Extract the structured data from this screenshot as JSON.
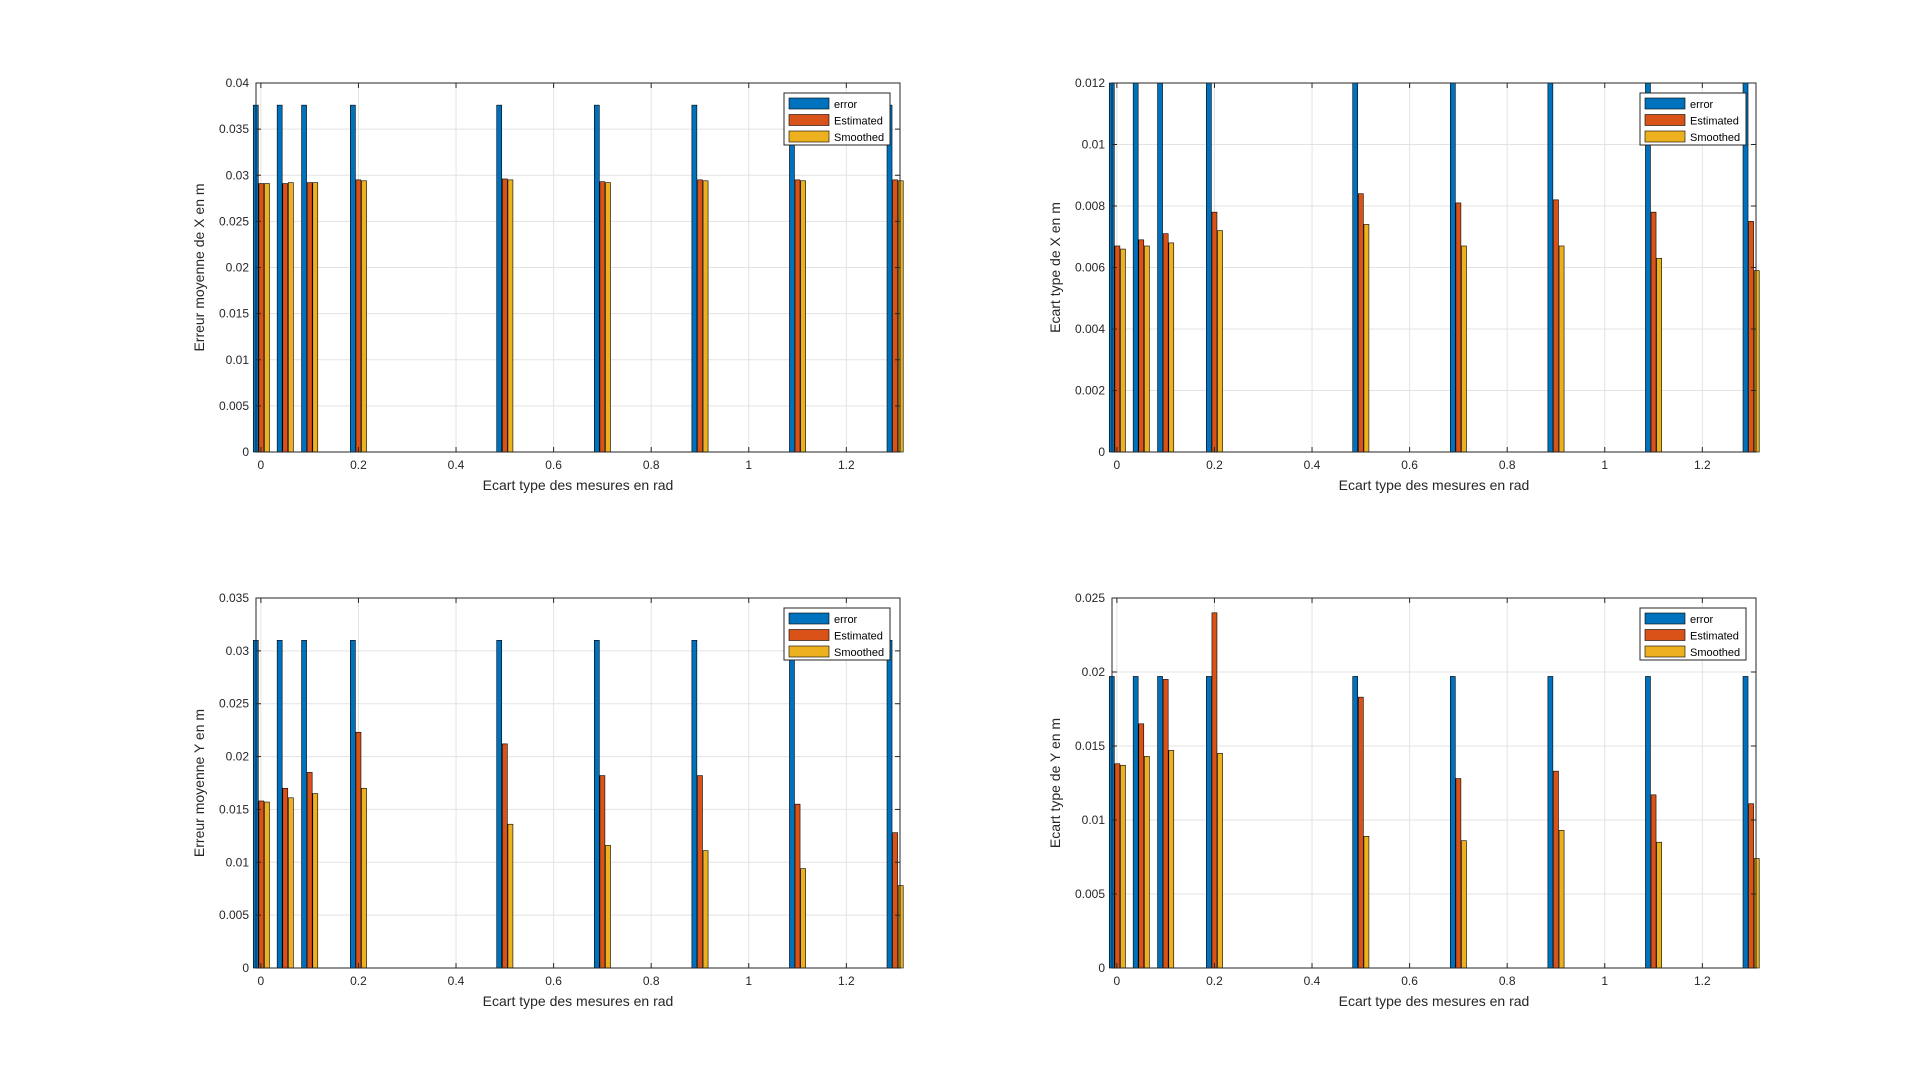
{
  "chart_data": [
    {
      "type": "bar",
      "xlabel": "Ecart type des mesures en rad",
      "ylabel": "Erreur moyenne de X en m",
      "xlim": [
        -0.01,
        1.31
      ],
      "ylim": [
        0,
        0.04
      ],
      "xticks": [
        0,
        0.2,
        0.4,
        0.6,
        0.8,
        1,
        1.2
      ],
      "xtick_labels": [
        "0",
        "0.2",
        "0.4",
        "0.6",
        "0.8",
        "1",
        "1.2"
      ],
      "yticks": [
        0,
        0.005,
        0.01,
        0.015,
        0.02,
        0.025,
        0.03,
        0.035,
        0.04
      ],
      "ytick_labels": [
        "0",
        "0.005",
        "0.01",
        "0.015",
        "0.02",
        "0.025",
        "0.03",
        "0.035",
        "0.04"
      ],
      "grid": true,
      "legend_position": "top-right",
      "x": [
        0.001,
        0.05,
        0.1,
        0.2,
        0.5,
        0.7,
        0.9,
        1.1,
        1.3
      ],
      "series": [
        {
          "name": "error",
          "color": "#0072BD",
          "values": [
            0.0376,
            0.0376,
            0.0376,
            0.0376,
            0.0376,
            0.0376,
            0.0376,
            0.0376,
            0.0376
          ]
        },
        {
          "name": "Estimated",
          "color": "#D95319",
          "values": [
            0.0291,
            0.0291,
            0.0292,
            0.0295,
            0.0296,
            0.0293,
            0.0295,
            0.0295,
            0.0295
          ]
        },
        {
          "name": "Smoothed",
          "color": "#EDB120",
          "values": [
            0.0291,
            0.0292,
            0.0292,
            0.0294,
            0.0295,
            0.0292,
            0.0294,
            0.0294,
            0.0294
          ]
        }
      ]
    },
    {
      "type": "bar",
      "xlabel": "Ecart type des mesures en rad",
      "ylabel": "Ecart type de X en m",
      "xlim": [
        -0.01,
        1.31
      ],
      "ylim": [
        0,
        0.012
      ],
      "xticks": [
        0,
        0.2,
        0.4,
        0.6,
        0.8,
        1,
        1.2
      ],
      "xtick_labels": [
        "0",
        "0.2",
        "0.4",
        "0.6",
        "0.8",
        "1",
        "1.2"
      ],
      "yticks": [
        0,
        0.002,
        0.004,
        0.006,
        0.008,
        0.01,
        0.012
      ],
      "ytick_labels": [
        "0",
        "0.002",
        "0.004",
        "0.006",
        "0.008",
        "0.01",
        "0.012"
      ],
      "grid": true,
      "legend_position": "top-right",
      "x": [
        0.001,
        0.05,
        0.1,
        0.2,
        0.5,
        0.7,
        0.9,
        1.1,
        1.3
      ],
      "series": [
        {
          "name": "error",
          "color": "#0072BD",
          "values": [
            0.012,
            0.012,
            0.012,
            0.012,
            0.012,
            0.012,
            0.012,
            0.012,
            0.012
          ]
        },
        {
          "name": "Estimated",
          "color": "#D95319",
          "values": [
            0.0067,
            0.0069,
            0.0071,
            0.0078,
            0.0084,
            0.0081,
            0.0082,
            0.0078,
            0.0075
          ]
        },
        {
          "name": "Smoothed",
          "color": "#EDB120",
          "values": [
            0.0066,
            0.0067,
            0.0068,
            0.0072,
            0.0074,
            0.0067,
            0.0067,
            0.0063,
            0.0059
          ]
        }
      ]
    },
    {
      "type": "bar",
      "xlabel": "Ecart type des mesures en rad",
      "ylabel": "Erreur moyenne Y en m",
      "xlim": [
        -0.01,
        1.31
      ],
      "ylim": [
        0,
        0.035
      ],
      "xticks": [
        0,
        0.2,
        0.4,
        0.6,
        0.8,
        1,
        1.2
      ],
      "xtick_labels": [
        "0",
        "0.2",
        "0.4",
        "0.6",
        "0.8",
        "1",
        "1.2"
      ],
      "yticks": [
        0,
        0.005,
        0.01,
        0.015,
        0.02,
        0.025,
        0.03,
        0.035
      ],
      "ytick_labels": [
        "0",
        "0.005",
        "0.01",
        "0.015",
        "0.02",
        "0.025",
        "0.03",
        "0.035"
      ],
      "grid": true,
      "legend_position": "top-right",
      "x": [
        0.001,
        0.05,
        0.1,
        0.2,
        0.5,
        0.7,
        0.9,
        1.1,
        1.3
      ],
      "series": [
        {
          "name": "error",
          "color": "#0072BD",
          "values": [
            0.031,
            0.031,
            0.031,
            0.031,
            0.031,
            0.031,
            0.031,
            0.031,
            0.031
          ]
        },
        {
          "name": "Estimated",
          "color": "#D95319",
          "values": [
            0.0158,
            0.017,
            0.0185,
            0.0223,
            0.0212,
            0.0182,
            0.0182,
            0.0155,
            0.0128
          ]
        },
        {
          "name": "Smoothed",
          "color": "#EDB120",
          "values": [
            0.0157,
            0.0161,
            0.0165,
            0.017,
            0.0136,
            0.0116,
            0.0111,
            0.0094,
            0.0078
          ]
        }
      ]
    },
    {
      "type": "bar",
      "xlabel": "Ecart type des mesures en rad",
      "ylabel": "Ecart type de Y en m",
      "xlim": [
        -0.01,
        1.31
      ],
      "ylim": [
        0,
        0.025
      ],
      "xticks": [
        0,
        0.2,
        0.4,
        0.6,
        0.8,
        1,
        1.2
      ],
      "xtick_labels": [
        "0",
        "0.2",
        "0.4",
        "0.6",
        "0.8",
        "1",
        "1.2"
      ],
      "yticks": [
        0,
        0.005,
        0.01,
        0.015,
        0.02,
        0.025
      ],
      "ytick_labels": [
        "0",
        "0.005",
        "0.01",
        "0.015",
        "0.02",
        "0.025"
      ],
      "grid": true,
      "legend_position": "top-right",
      "x": [
        0.001,
        0.05,
        0.1,
        0.2,
        0.5,
        0.7,
        0.9,
        1.1,
        1.3
      ],
      "series": [
        {
          "name": "error",
          "color": "#0072BD",
          "values": [
            0.0197,
            0.0197,
            0.0197,
            0.0197,
            0.0197,
            0.0197,
            0.0197,
            0.0197,
            0.0197
          ]
        },
        {
          "name": "Estimated",
          "color": "#D95319",
          "values": [
            0.0138,
            0.0165,
            0.0195,
            0.024,
            0.0183,
            0.0128,
            0.0133,
            0.0117,
            0.0111
          ]
        },
        {
          "name": "Smoothed",
          "color": "#EDB120",
          "values": [
            0.0137,
            0.0143,
            0.0147,
            0.0145,
            0.0089,
            0.0086,
            0.0093,
            0.0085,
            0.0074
          ]
        }
      ]
    }
  ]
}
